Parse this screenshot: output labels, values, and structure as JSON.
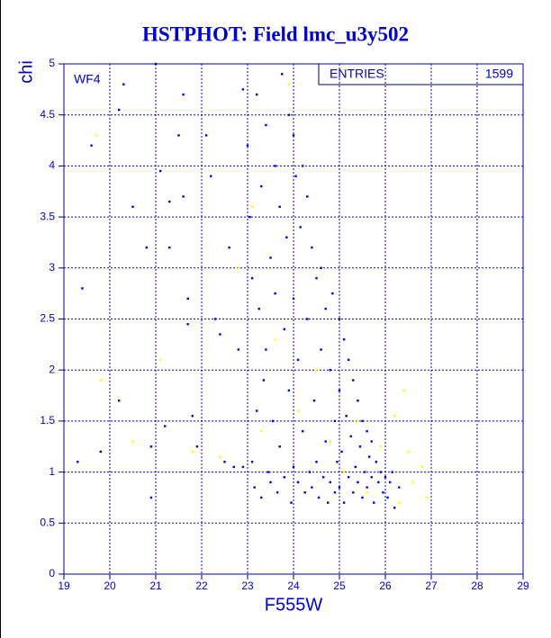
{
  "chart_data": {
    "type": "scatter",
    "title": "HSTPHOT: Field lmc_u3y502",
    "xlabel": "F555W",
    "ylabel": "chi",
    "panel_label": "WF4",
    "stats_label": "ENTRIES",
    "stats_value": "1599",
    "xlim": [
      19,
      29
    ],
    "ylim": [
      0,
      5
    ],
    "xticks": [
      19,
      20,
      21,
      22,
      23,
      24,
      25,
      26,
      27,
      28,
      29
    ],
    "yticks": [
      0,
      0.5,
      1,
      1.5,
      2,
      2.5,
      3,
      3.5,
      4,
      4.5,
      5
    ],
    "grid": true,
    "series": [
      {
        "color": "#0000cc",
        "x": [
          19.3,
          19.4,
          19.6,
          19.8,
          20.2,
          20.2,
          20.3,
          20.5,
          20.8,
          20.9,
          20.9,
          21,
          21.1,
          21.2,
          21.3,
          21.3,
          21.5,
          21.6,
          21.6,
          21.7,
          21.7,
          21.8,
          21.9,
          22.1,
          22.2,
          22.3,
          22.4,
          22.5,
          22.6,
          22.7,
          22.8,
          22.9,
          22.9,
          23.0,
          23.05,
          23.1,
          23.1,
          23.15,
          23.2,
          23.2,
          23.25,
          23.3,
          23.3,
          23.35,
          23.4,
          23.4,
          23.45,
          23.5,
          23.5,
          23.55,
          23.6,
          23.6,
          23.65,
          23.7,
          23.7,
          23.75,
          23.8,
          23.8,
          23.85,
          23.9,
          23.9,
          23.95,
          24.0,
          24.0,
          24.0,
          24.05,
          24.1,
          24.1,
          24.15,
          24.2,
          24.2,
          24.25,
          24.3,
          24.3,
          24.35,
          24.4,
          24.4,
          24.45,
          24.5,
          24.5,
          24.55,
          24.6,
          24.6,
          24.65,
          24.7,
          24.7,
          24.75,
          24.8,
          24.8,
          24.85,
          24.9,
          24.9,
          24.95,
          25.0,
          25.0,
          25.0,
          25.05,
          25.1,
          25.1,
          25.15,
          25.2,
          25.2,
          25.25,
          25.3,
          25.3,
          25.35,
          25.4,
          25.4,
          25.45,
          25.5,
          25.5,
          25.55,
          25.6,
          25.6,
          25.65,
          25.7,
          25.7,
          25.75,
          25.8,
          25.85,
          25.9,
          25.95,
          26.0,
          26.05,
          26.1,
          26.15,
          26.2,
          26.3
        ],
        "y": [
          1.1,
          2.8,
          4.2,
          1.2,
          1.7,
          4.55,
          4.8,
          3.6,
          3.2,
          0.75,
          1.25,
          5,
          3.95,
          1.45,
          3.65,
          3.2,
          4.3,
          4.7,
          3.7,
          2.7,
          2.45,
          1.55,
          1.25,
          4.3,
          3.9,
          2.5,
          2.35,
          1.1,
          3.2,
          1.05,
          2.2,
          1.05,
          4.75,
          4.2,
          3.5,
          2.9,
          1.1,
          0.85,
          4.7,
          1.6,
          2.6,
          3.8,
          0.75,
          1.9,
          4.4,
          2.2,
          1.0,
          3.1,
          0.9,
          1.5,
          4.0,
          2.75,
          0.8,
          3.6,
          1.25,
          4.9,
          2.4,
          0.95,
          3.3,
          4.5,
          1.8,
          0.7,
          4.3,
          2.7,
          1.05,
          3.9,
          2.1,
          0.9,
          3.4,
          4.0,
          1.4,
          0.8,
          3.7,
          2.5,
          1.0,
          3.2,
          0.85,
          1.7,
          2.9,
          1.1,
          0.75,
          3.0,
          2.2,
          0.95,
          2.6,
          1.3,
          0.7,
          2.0,
          0.9,
          2.75,
          1.5,
          0.8,
          1.1,
          2.5,
          1.8,
          0.85,
          1.2,
          2.3,
          0.7,
          1.55,
          2.1,
          0.95,
          1.35,
          1.9,
          0.8,
          1.05,
          1.7,
          0.9,
          1.25,
          1.5,
          0.75,
          1.0,
          1.4,
          0.85,
          1.15,
          1.3,
          0.95,
          0.7,
          1.1,
          0.9,
          1.0,
          0.8,
          0.95,
          0.75,
          0.9,
          1.0,
          0.65,
          0.85
        ]
      },
      {
        "color": "#ffff00",
        "x": [
          19.7,
          19.8,
          20.5,
          21.1,
          21.8,
          22.4,
          22.8,
          23.1,
          23.3,
          23.6,
          23.9,
          24.1,
          24.5,
          24.8,
          25.1,
          25.4,
          25.6,
          25.9,
          26.2,
          26.3,
          26.5,
          26.6,
          26.8,
          26.9,
          26.4
        ],
        "y": [
          4.3,
          1.9,
          1.3,
          2.1,
          1.2,
          1.15,
          3.0,
          3.6,
          1.4,
          2.3,
          4.8,
          1.6,
          2.0,
          1.3,
          1.0,
          1.5,
          0.8,
          1.25,
          1.55,
          0.7,
          1.2,
          0.9,
          1.05,
          0.75,
          1.8
        ]
      }
    ]
  }
}
